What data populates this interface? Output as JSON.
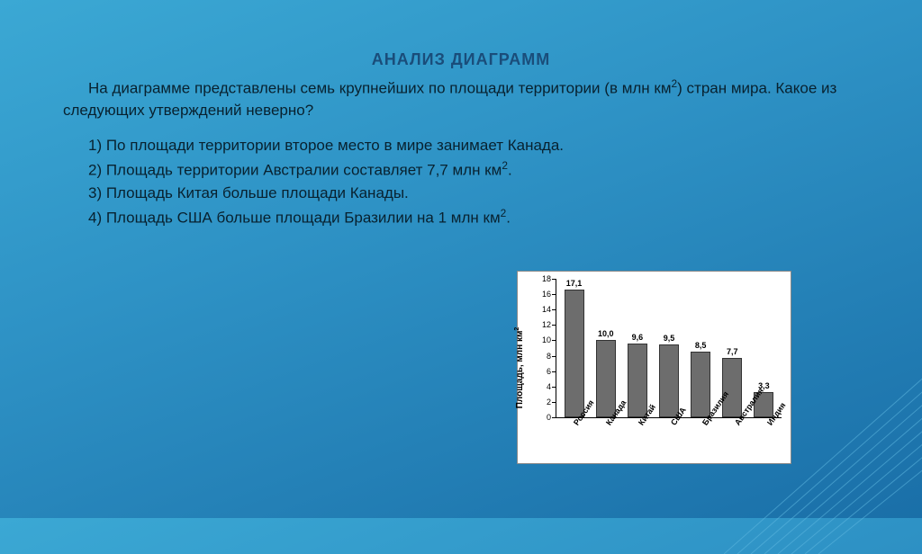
{
  "title": "АНАЛИЗ ДИАГРАММ",
  "intro_before_sup": "На диаграмме представлены семь крупнейших по площади территории (в млн км",
  "intro_sup": "2",
  "intro_after_sup": ") стран мира. Какое из следующих утверждений неверно?",
  "options": {
    "o1": "1) По площади территории второе место в мире занимает Канада.",
    "o2_before": "2) Площадь территории Австралии составляет 7,7 млн км",
    "o2_sup": "2",
    "o2_after": ".",
    "o3": "3) Площадь Китая больше площади Канады.",
    "o4_before": "4) Площадь США больше площади Бразилии на 1 млн км",
    "o4_sup": "2",
    "o4_after": "."
  },
  "chart": {
    "type": "bar",
    "ylabel_before": "Площадь, млн км",
    "ylabel_sup": "2",
    "ylim": [
      0,
      18
    ],
    "ytick_step": 2,
    "bar_color": "#6d6d6d",
    "bar_border": "#333333",
    "background": "#ffffff",
    "tick_fontsize": 9,
    "val_fontsize": 9,
    "categories": [
      "Россия",
      "Канада",
      "Китай",
      "США",
      "Бразилия",
      "Австралия",
      "Индия"
    ],
    "values": [
      17.1,
      10.0,
      9.6,
      9.5,
      8.5,
      7.7,
      3.3
    ],
    "value_labels": [
      "17,1",
      "10,0",
      "9,6",
      "9,5",
      "8,5",
      "7,7",
      "3,3"
    ]
  },
  "deco_line_color": "#5fb8e0"
}
